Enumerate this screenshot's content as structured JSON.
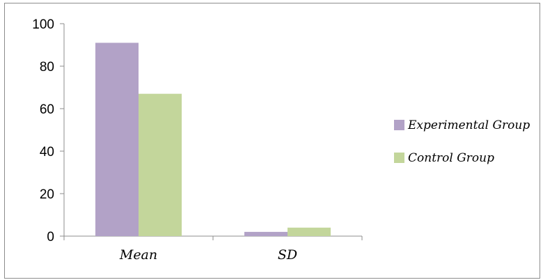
{
  "chart_data": {
    "type": "bar",
    "categories": [
      "Mean",
      "SD"
    ],
    "series": [
      {
        "name": "Experimental Group",
        "values": [
          91,
          2
        ]
      },
      {
        "name": "Control Group",
        "values": [
          67,
          4
        ]
      }
    ],
    "title": "",
    "xlabel": "",
    "ylabel": "",
    "ylim": [
      0,
      100
    ],
    "yticks": [
      0,
      20,
      40,
      60,
      80,
      100
    ],
    "grid": false,
    "legend_position": "right",
    "colors": {
      "Experimental Group": "#b2a2c7",
      "Control Group": "#c3d69b"
    }
  }
}
